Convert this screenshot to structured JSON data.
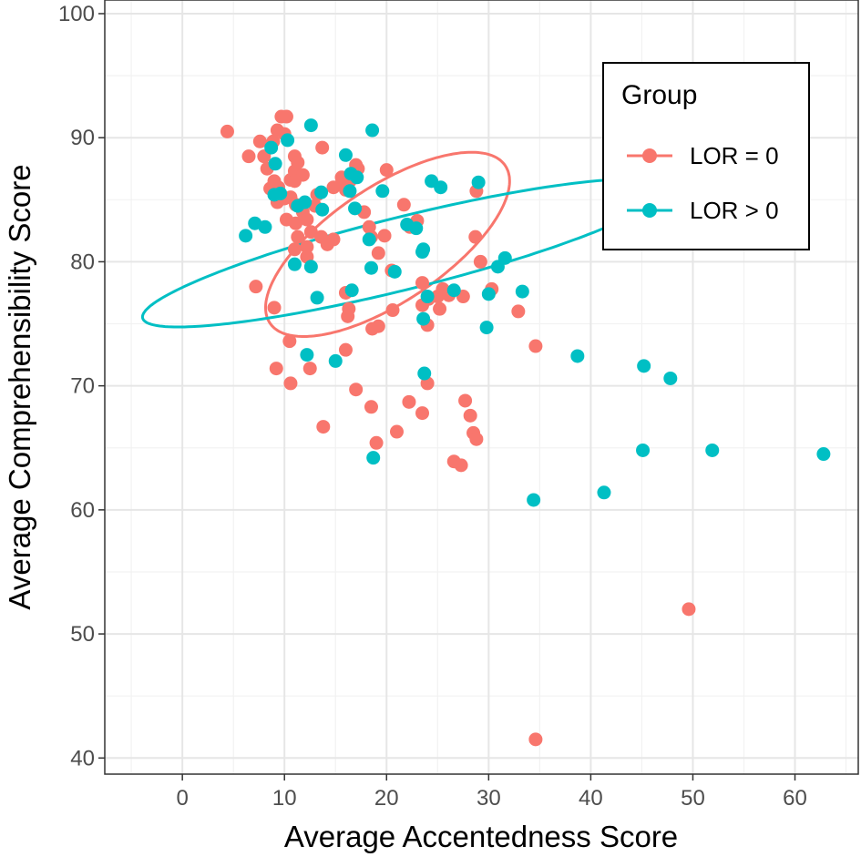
{
  "chart_data": {
    "type": "scatter",
    "xlabel": "Average Accentedness Score",
    "ylabel": "Average Comprehensibility Score",
    "xlim": [
      -7.6,
      66.2
    ],
    "ylim": [
      38.7,
      101.1
    ],
    "x_ticks": [
      0,
      10,
      20,
      30,
      40,
      50,
      60
    ],
    "y_ticks": [
      40,
      50,
      60,
      70,
      80,
      90,
      100
    ],
    "grid": true,
    "legend": {
      "title": "Group",
      "position": "top-right"
    },
    "series": [
      {
        "name": "LOR = 0",
        "color": "#F8766D",
        "points": [
          [
            4.4,
            90.5
          ],
          [
            6.5,
            88.5
          ],
          [
            7.6,
            89.7
          ],
          [
            8.0,
            88.5
          ],
          [
            8.9,
            89.7
          ],
          [
            9.3,
            90.6
          ],
          [
            9.7,
            91.7
          ],
          [
            10.2,
            91.7
          ],
          [
            10.0,
            90.3
          ],
          [
            8.3,
            87.5
          ],
          [
            9.0,
            86.5
          ],
          [
            9.4,
            86.0
          ],
          [
            8.6,
            85.9
          ],
          [
            9.3,
            84.8
          ],
          [
            10.0,
            85.1
          ],
          [
            10.6,
            86.6
          ],
          [
            11.0,
            87.3
          ],
          [
            11.0,
            88.5
          ],
          [
            11.3,
            88.0
          ],
          [
            11.8,
            87.0
          ],
          [
            11.0,
            86.5
          ],
          [
            10.6,
            85.2
          ],
          [
            11.1,
            84.6
          ],
          [
            11.8,
            84.0
          ],
          [
            10.2,
            83.4
          ],
          [
            11.1,
            83.1
          ],
          [
            12.2,
            83.4
          ],
          [
            11.3,
            82.0
          ],
          [
            12.2,
            81.2
          ],
          [
            12.6,
            82.4
          ],
          [
            11.0,
            81.0
          ],
          [
            12.2,
            80.4
          ],
          [
            13.6,
            82.0
          ],
          [
            14.2,
            81.4
          ],
          [
            14.8,
            81.8
          ],
          [
            13.0,
            84.5
          ],
          [
            13.7,
            89.2
          ],
          [
            13.2,
            85.4
          ],
          [
            14.8,
            86.0
          ],
          [
            15.6,
            86.3
          ],
          [
            16.0,
            85.8
          ],
          [
            16.4,
            86.5
          ],
          [
            17.2,
            87.5
          ],
          [
            17.0,
            87.8
          ],
          [
            15.6,
            86.8
          ],
          [
            20.0,
            87.4
          ],
          [
            18.5,
            82.0
          ],
          [
            17.8,
            84.0
          ],
          [
            18.3,
            82.8
          ],
          [
            19.8,
            82.1
          ],
          [
            19.2,
            80.7
          ],
          [
            20.5,
            79.3
          ],
          [
            21.7,
            84.6
          ],
          [
            22.3,
            82.8
          ],
          [
            23.0,
            83.3
          ],
          [
            23.5,
            78.3
          ],
          [
            24.1,
            77.0
          ],
          [
            25.0,
            77.2
          ],
          [
            25.5,
            77.8
          ],
          [
            25.2,
            76.2
          ],
          [
            26.1,
            77.3
          ],
          [
            27.5,
            77.2
          ],
          [
            29.2,
            80.0
          ],
          [
            28.8,
            85.7
          ],
          [
            28.7,
            82.0
          ],
          [
            30.3,
            77.8
          ],
          [
            32.9,
            76.0
          ],
          [
            34.6,
            73.2
          ],
          [
            7.2,
            78.0
          ],
          [
            9.0,
            76.3
          ],
          [
            16.0,
            77.5
          ],
          [
            16.2,
            75.6
          ],
          [
            16.3,
            76.2
          ],
          [
            18.6,
            74.6
          ],
          [
            19.2,
            74.8
          ],
          [
            20.6,
            76.1
          ],
          [
            23.5,
            76.5
          ],
          [
            24.0,
            74.9
          ],
          [
            10.5,
            73.6
          ],
          [
            16.0,
            72.9
          ],
          [
            9.2,
            71.4
          ],
          [
            10.6,
            70.2
          ],
          [
            12.5,
            71.4
          ],
          [
            17.0,
            69.7
          ],
          [
            18.5,
            68.3
          ],
          [
            22.2,
            68.7
          ],
          [
            24.0,
            70.2
          ],
          [
            23.5,
            67.8
          ],
          [
            27.7,
            68.8
          ],
          [
            28.2,
            67.6
          ],
          [
            13.8,
            66.7
          ],
          [
            19.0,
            65.4
          ],
          [
            21.0,
            66.3
          ],
          [
            28.5,
            66.2
          ],
          [
            28.8,
            65.7
          ],
          [
            26.6,
            63.9
          ],
          [
            27.3,
            63.6
          ],
          [
            49.6,
            52.0
          ],
          [
            34.6,
            41.5
          ]
        ]
      },
      {
        "name": "LOR > 0",
        "color": "#00BFC4",
        "points": [
          [
            6.2,
            82.1
          ],
          [
            7.1,
            83.1
          ],
          [
            8.1,
            82.8
          ],
          [
            8.7,
            89.2
          ],
          [
            9.1,
            87.9
          ],
          [
            9.6,
            85.5
          ],
          [
            9.0,
            85.4
          ],
          [
            10.3,
            89.8
          ],
          [
            11.3,
            84.5
          ],
          [
            12.6,
            91.0
          ],
          [
            13.6,
            85.6
          ],
          [
            12.0,
            84.8
          ],
          [
            13.7,
            84.2
          ],
          [
            16.0,
            88.6
          ],
          [
            16.4,
            85.7
          ],
          [
            16.5,
            87.1
          ],
          [
            16.9,
            84.3
          ],
          [
            17.1,
            86.8
          ],
          [
            18.3,
            81.8
          ],
          [
            18.6,
            90.6
          ],
          [
            19.6,
            85.7
          ],
          [
            18.5,
            79.5
          ],
          [
            20.8,
            79.2
          ],
          [
            22.0,
            83.0
          ],
          [
            22.9,
            82.7
          ],
          [
            23.6,
            81.0
          ],
          [
            23.5,
            80.8
          ],
          [
            24.4,
            86.5
          ],
          [
            25.3,
            86.0
          ],
          [
            26.6,
            77.7
          ],
          [
            24.0,
            77.2
          ],
          [
            29.0,
            86.4
          ],
          [
            30.0,
            77.4
          ],
          [
            30.9,
            79.6
          ],
          [
            31.6,
            80.3
          ],
          [
            33.3,
            77.6
          ],
          [
            29.8,
            74.7
          ],
          [
            23.6,
            75.4
          ],
          [
            11.0,
            79.8
          ],
          [
            12.6,
            79.6
          ],
          [
            13.2,
            77.1
          ],
          [
            16.6,
            77.7
          ],
          [
            12.2,
            72.5
          ],
          [
            15.0,
            72.0
          ],
          [
            23.7,
            71.0
          ],
          [
            38.7,
            72.4
          ],
          [
            45.2,
            71.6
          ],
          [
            47.8,
            70.6
          ],
          [
            18.7,
            64.2
          ],
          [
            34.4,
            60.8
          ],
          [
            41.3,
            61.4
          ],
          [
            45.1,
            64.8
          ],
          [
            51.9,
            64.8
          ],
          [
            62.8,
            64.5
          ]
        ]
      }
    ],
    "ellipses": [
      {
        "series": "LOR = 0",
        "center": [
          20.1,
          81.4
        ],
        "rx": 25.5,
        "ry": 8.15,
        "angle_deg": -111.2
      },
      {
        "series": "LOR > 0",
        "center": [
          21.7,
          80.7
        ],
        "rx": 31.0,
        "ry": 8.0,
        "angle_deg": -144.3
      }
    ]
  }
}
